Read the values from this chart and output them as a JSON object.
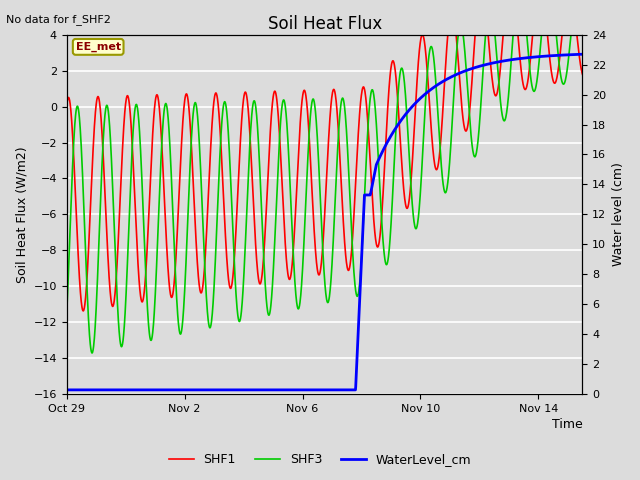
{
  "title": "Soil Heat Flux",
  "subtitle": "No data for f_SHF2",
  "xlabel": "Time",
  "ylabel_left": "Soil Heat Flux (W/m2)",
  "ylabel_right": "Water level (cm)",
  "ylim_left": [
    -16,
    4
  ],
  "ylim_right": [
    0,
    24
  ],
  "yticks_left": [
    -16,
    -14,
    -12,
    -10,
    -8,
    -6,
    -4,
    -2,
    0,
    2,
    4
  ],
  "yticks_right": [
    0,
    2,
    4,
    6,
    8,
    10,
    12,
    14,
    16,
    18,
    20,
    22,
    24
  ],
  "xtick_positions": [
    0,
    4,
    8,
    12,
    16
  ],
  "xtick_labels": [
    "Oct 29",
    "Nov 2",
    "Nov 6",
    "Nov 10",
    "Nov 14"
  ],
  "xlim": [
    0,
    17.5
  ],
  "bg_color": "#dcdcdc",
  "plot_bg_color": "#dcdcdc",
  "grid_color": "#ffffff",
  "shf1_color": "#ff0000",
  "shf3_color": "#00cc00",
  "water_color": "#0000ff",
  "label_box_facecolor": "#ffffcc",
  "label_box_edgecolor": "#999900",
  "label_box_text": "EE_met",
  "label_box_textcolor": "#8b0000",
  "legend_labels": [
    "SHF1",
    "SHF3",
    "WaterLevel_cm"
  ],
  "title_fontsize": 12,
  "axis_fontsize": 9,
  "tick_fontsize": 8,
  "legend_fontsize": 9,
  "linewidth_shf": 1.2,
  "linewidth_water": 2.0
}
